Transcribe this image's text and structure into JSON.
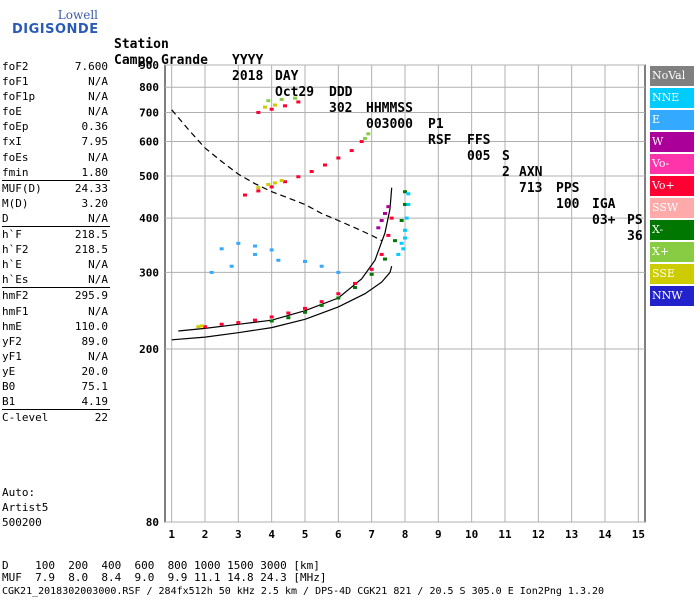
{
  "logo": {
    "top": "Lowell",
    "main": "DIGISONDE"
  },
  "header": {
    "row1": [
      "Station",
      "YYYY",
      "DAY",
      "DDD",
      "HHMMSS",
      "P1",
      "FFS",
      "S",
      "AXN",
      "PPS",
      "IGA",
      "PS"
    ],
    "row2": [
      "Campo Grande",
      "2018",
      "Oct29",
      "302",
      "003000",
      "RSF",
      "005",
      "2",
      "713",
      "100",
      "03+",
      "36"
    ]
  },
  "params": {
    "group1": [
      {
        "label": "foF2",
        "value": "7.600"
      },
      {
        "label": "foF1",
        "value": "N/A"
      },
      {
        "label": "foF1p",
        "value": "N/A"
      },
      {
        "label": "foE",
        "value": "N/A"
      },
      {
        "label": "foEp",
        "value": "0.36"
      },
      {
        "label": "fxI",
        "value": "7.95"
      },
      {
        "label": "foEs",
        "value": "N/A"
      },
      {
        "label": "fmin",
        "value": "1.80"
      }
    ],
    "group2": [
      {
        "label": "MUF(D)",
        "value": "24.33"
      },
      {
        "label": "M(D)",
        "value": "3.20"
      },
      {
        "label": "D",
        "value": "N/A"
      }
    ],
    "group3": [
      {
        "label": "h`F",
        "value": "218.5"
      },
      {
        "label": "h`F2",
        "value": "218.5"
      },
      {
        "label": "h`E",
        "value": "N/A"
      },
      {
        "label": "h`Es",
        "value": "N/A"
      }
    ],
    "group4": [
      {
        "label": "hmF2",
        "value": "295.9"
      },
      {
        "label": "hmF1",
        "value": "N/A"
      },
      {
        "label": "hmE",
        "value": "110.0"
      },
      {
        "label": "yF2",
        "value": "89.0"
      },
      {
        "label": "yF1",
        "value": "N/A"
      },
      {
        "label": "yE",
        "value": "20.0"
      },
      {
        "label": "B0",
        "value": "75.1"
      },
      {
        "label": "B1",
        "value": "4.19"
      }
    ],
    "group5": [
      {
        "label": "C-level",
        "value": "22"
      }
    ]
  },
  "auto": {
    "line1": "Auto:",
    "line2": "Artist5",
    "line3": "500200"
  },
  "legend": [
    {
      "label": "NoVal",
      "color": "#808080"
    },
    {
      "label": "NNE",
      "color": "#00ccff"
    },
    {
      "label": "E",
      "color": "#33aaff"
    },
    {
      "label": "W",
      "color": "#aa0099"
    },
    {
      "label": "Vo-",
      "color": "#ff33aa"
    },
    {
      "label": "Vo+",
      "color": "#ff0033"
    },
    {
      "label": "SSW",
      "color": "#ffaaaa"
    },
    {
      "label": "X-",
      "color": "#007700"
    },
    {
      "label": "X+",
      "color": "#88cc44"
    },
    {
      "label": "SSE",
      "color": "#cccc00"
    },
    {
      "label": "NNW",
      "color": "#2222cc"
    }
  ],
  "bottom": {
    "line1": "D    100  200  400  600  800 1000 1500 3000 [km]",
    "line2": "MUF  7.9  8.0  8.4  9.0  9.9 11.1 14.8 24.3 [MHz]",
    "line3": "CGK21_2018302003000.RSF / 284fx512h 50 kHz 2.5 km / DPS-4D CGK21 821 / 20.5 S 305.0 E Ion2Png 1.3.20"
  },
  "chart_data": {
    "type": "scatter",
    "xlabel": "",
    "ylabel": "",
    "xlim": [
      0.8,
      15.2
    ],
    "ylim": [
      80,
      900
    ],
    "xticks": [
      1,
      2,
      3,
      4,
      5,
      6,
      7,
      8,
      9,
      10,
      11,
      12,
      13,
      14,
      15
    ],
    "yticks": [
      80,
      200,
      300,
      400,
      500,
      600,
      700,
      800,
      900
    ],
    "grid": true,
    "y_scale": "log",
    "series": [
      {
        "name": "Vo+",
        "color": "#ff0033",
        "points": [
          [
            2.0,
            225
          ],
          [
            2.5,
            228
          ],
          [
            3.0,
            230
          ],
          [
            3.5,
            233
          ],
          [
            4.0,
            237
          ],
          [
            4.5,
            242
          ],
          [
            5.0,
            248
          ],
          [
            5.5,
            257
          ],
          [
            6.0,
            268
          ],
          [
            6.5,
            283
          ],
          [
            7.0,
            305
          ],
          [
            7.3,
            330
          ],
          [
            7.5,
            365
          ],
          [
            7.6,
            400
          ],
          [
            3.2,
            452
          ],
          [
            3.6,
            462
          ],
          [
            4.0,
            472
          ],
          [
            4.4,
            485
          ],
          [
            4.8,
            498
          ],
          [
            5.2,
            512
          ],
          [
            5.6,
            530
          ],
          [
            6.0,
            550
          ],
          [
            6.4,
            572
          ],
          [
            6.7,
            600
          ],
          [
            3.6,
            700
          ],
          [
            4.0,
            712
          ],
          [
            4.4,
            725
          ],
          [
            4.8,
            740
          ]
        ]
      },
      {
        "name": "X-",
        "color": "#007700",
        "points": [
          [
            4.0,
            232
          ],
          [
            4.5,
            236
          ],
          [
            5.0,
            243
          ],
          [
            5.5,
            252
          ],
          [
            6.0,
            262
          ],
          [
            6.5,
            277
          ],
          [
            7.0,
            297
          ],
          [
            7.4,
            322
          ],
          [
            7.7,
            355
          ],
          [
            7.9,
            395
          ],
          [
            8.0,
            430
          ],
          [
            8.0,
            460
          ]
        ]
      },
      {
        "name": "NNE",
        "color": "#00ccff",
        "points": [
          [
            7.8,
            330
          ],
          [
            7.9,
            350
          ],
          [
            8.0,
            375
          ],
          [
            8.05,
            400
          ],
          [
            8.1,
            430
          ],
          [
            8.1,
            455
          ],
          [
            7.95,
            340
          ],
          [
            8.0,
            360
          ]
        ]
      },
      {
        "name": "SSE",
        "color": "#cccc00",
        "points": [
          [
            1.8,
            225
          ],
          [
            1.9,
            226
          ],
          [
            3.6,
            470
          ],
          [
            3.9,
            478
          ],
          [
            4.1,
            482
          ],
          [
            4.3,
            488
          ],
          [
            3.8,
            720
          ],
          [
            4.1,
            728
          ]
        ]
      },
      {
        "name": "E",
        "color": "#33aaff",
        "points": [
          [
            2.2,
            300
          ],
          [
            2.8,
            310
          ],
          [
            3.5,
            330
          ],
          [
            4.2,
            320
          ],
          [
            5.0,
            318
          ],
          [
            5.5,
            310
          ],
          [
            6.0,
            300
          ],
          [
            2.5,
            340
          ],
          [
            3.0,
            350
          ],
          [
            3.5,
            345
          ],
          [
            4.0,
            338
          ]
        ]
      },
      {
        "name": "X+",
        "color": "#88cc44",
        "points": [
          [
            3.9,
            745
          ],
          [
            4.3,
            750
          ],
          [
            4.7,
            755
          ],
          [
            6.8,
            610
          ],
          [
            6.9,
            625
          ]
        ]
      },
      {
        "name": "W",
        "color": "#aa0099",
        "points": [
          [
            7.2,
            380
          ],
          [
            7.3,
            395
          ],
          [
            7.4,
            410
          ],
          [
            7.5,
            425
          ]
        ]
      }
    ],
    "curves": [
      {
        "name": "model_O",
        "color": "#000000",
        "style": "solid",
        "points": [
          [
            1.0,
            210
          ],
          [
            2.0,
            213
          ],
          [
            3.0,
            218
          ],
          [
            4.0,
            224
          ],
          [
            5.0,
            234
          ],
          [
            6.0,
            250
          ],
          [
            6.8,
            268
          ],
          [
            7.3,
            285
          ],
          [
            7.55,
            300
          ],
          [
            7.6,
            310
          ]
        ]
      },
      {
        "name": "model_X",
        "color": "#000000",
        "style": "solid",
        "points": [
          [
            1.2,
            220
          ],
          [
            2.0,
            223
          ],
          [
            3.0,
            228
          ],
          [
            4.0,
            233
          ],
          [
            5.0,
            245
          ],
          [
            6.0,
            262
          ],
          [
            6.7,
            290
          ],
          [
            7.1,
            320
          ],
          [
            7.4,
            370
          ],
          [
            7.55,
            420
          ],
          [
            7.6,
            470
          ]
        ]
      },
      {
        "name": "muf_curve",
        "color": "#000000",
        "style": "dashed",
        "points": [
          [
            1.0,
            710
          ],
          [
            1.5,
            640
          ],
          [
            2.0,
            580
          ],
          [
            2.5,
            540
          ],
          [
            3.0,
            505
          ],
          [
            3.5,
            480
          ],
          [
            4.0,
            460
          ],
          [
            4.5,
            445
          ],
          [
            5.0,
            430
          ],
          [
            5.5,
            410
          ],
          [
            6.0,
            395
          ],
          [
            6.5,
            380
          ],
          [
            7.0,
            365
          ],
          [
            7.3,
            355
          ]
        ]
      }
    ]
  }
}
